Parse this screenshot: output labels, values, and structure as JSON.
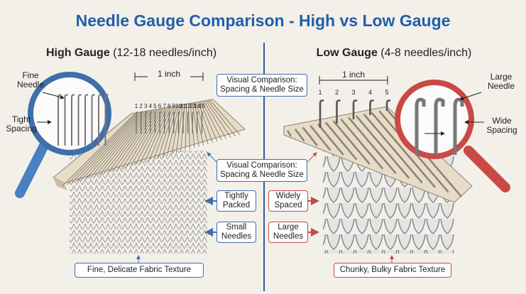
{
  "title": "Needle Gauge Comparison - High vs Low Gauge",
  "high_gauge": {
    "heading": "High Gauge",
    "range": "(12-18 needles/inch)",
    "needle_label": "Fine Needle",
    "spacing_label": "Tight Spacing",
    "inch_label": "1 inch",
    "needle_numbers": [
      1,
      2,
      3,
      4,
      5,
      6,
      7,
      8,
      9,
      10,
      11,
      12,
      13,
      14,
      15
    ],
    "callouts": [
      "Tightly Packed",
      "Small Needles"
    ],
    "fabric_label": "Fine, Delicate Fabric Texture"
  },
  "low_gauge": {
    "heading": "Low Gauge",
    "range": "(4-8 needles/inch)",
    "needle_label": "Large Needle",
    "spacing_label": "Wide Spacing",
    "inch_label": "1 inch",
    "needle_numbers": [
      1,
      2,
      3,
      4,
      5
    ],
    "callouts": [
      "Widely Spaced",
      "Large Needles"
    ],
    "fabric_label": "Chunky, Bulky Fabric Texture"
  },
  "comparison_labels": [
    "Visual Comparison: Spacing & Needle Size",
    "Visual Comparison: Spacing & Needle Size"
  ]
}
